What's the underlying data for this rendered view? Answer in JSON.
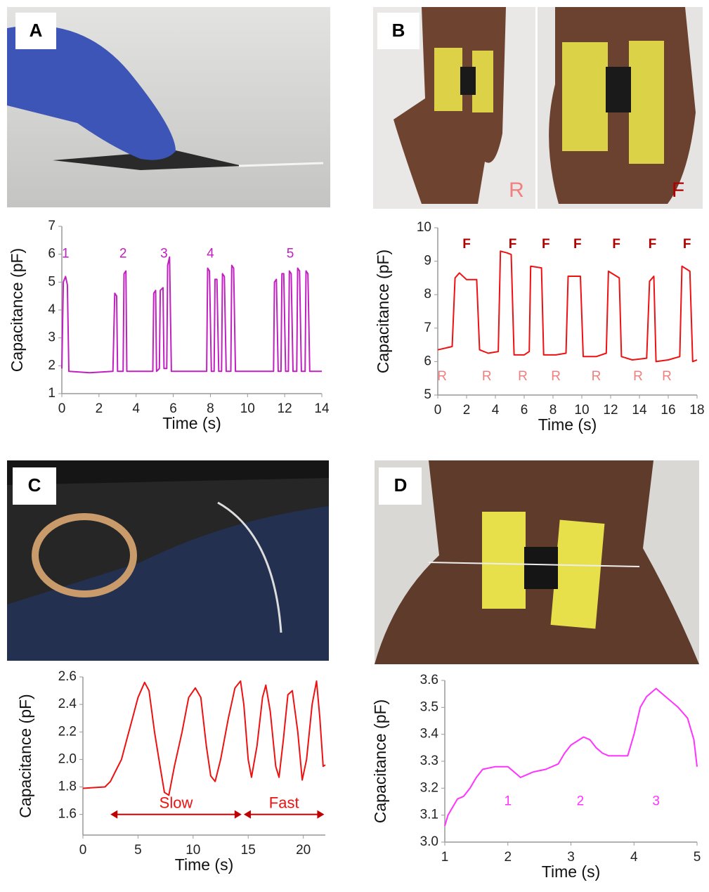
{
  "panels": [
    {
      "label": "A"
    },
    {
      "label": "B"
    },
    {
      "label": "C"
    },
    {
      "label": "D"
    }
  ],
  "photo_labels": [
    "R",
    "F"
  ],
  "chart_data": [
    {
      "type": "line",
      "xlabel": "Time (s)",
      "ylabel": "Capacitance (pF)",
      "color": "#c020c0",
      "x": [
        0,
        0.08,
        0.2,
        0.3,
        0.38,
        1.5,
        2.75,
        2.85,
        2.95,
        3.0,
        3.3,
        3.35,
        3.45,
        3.5,
        4.2,
        4.9,
        4.95,
        5.05,
        5.1,
        5.25,
        5.3,
        5.45,
        5.5,
        5.65,
        5.7,
        5.8,
        5.9,
        7.0,
        7.8,
        7.85,
        7.95,
        8.05,
        8.2,
        8.25,
        8.35,
        8.45,
        8.6,
        8.65,
        8.75,
        8.85,
        9.1,
        9.15,
        9.25,
        9.35,
        10.5,
        11.4,
        11.45,
        11.55,
        11.65,
        11.8,
        11.85,
        11.95,
        12.05,
        12.2,
        12.25,
        12.35,
        12.45,
        12.65,
        12.7,
        12.8,
        12.9,
        13.1,
        13.15,
        13.25,
        13.35,
        14
      ],
      "values": [
        1.9,
        5.0,
        5.2,
        4.9,
        1.8,
        1.75,
        1.8,
        4.6,
        4.5,
        1.8,
        1.8,
        5.3,
        5.4,
        1.8,
        1.8,
        1.8,
        4.6,
        4.7,
        1.8,
        1.9,
        4.7,
        4.8,
        1.9,
        1.9,
        5.6,
        5.9,
        1.8,
        1.8,
        1.8,
        5.5,
        5.4,
        1.8,
        1.8,
        5.1,
        5.1,
        1.8,
        1.8,
        5.3,
        5.2,
        1.8,
        1.8,
        5.6,
        5.5,
        1.8,
        1.8,
        1.8,
        5.0,
        5.1,
        1.8,
        1.8,
        5.3,
        5.3,
        1.8,
        1.8,
        5.4,
        5.3,
        1.8,
        1.8,
        5.5,
        5.4,
        1.8,
        1.8,
        5.4,
        5.3,
        1.8,
        1.8
      ],
      "xlim": [
        0,
        14
      ],
      "ylim": [
        1,
        7
      ],
      "xticks": [
        0,
        2,
        4,
        6,
        8,
        10,
        12,
        14
      ],
      "yticks": [
        1,
        2,
        3,
        4,
        5,
        6,
        7
      ],
      "annotations": [
        {
          "text": "1",
          "x": 0.2,
          "y": 6.0,
          "color": "#c020c0"
        },
        {
          "text": "2",
          "x": 3.3,
          "y": 6.0,
          "color": "#c020c0"
        },
        {
          "text": "3",
          "x": 5.5,
          "y": 6.0,
          "color": "#c020c0"
        },
        {
          "text": "4",
          "x": 8.0,
          "y": 6.0,
          "color": "#c020c0"
        },
        {
          "text": "5",
          "x": 12.3,
          "y": 6.0,
          "color": "#c020c0"
        }
      ]
    },
    {
      "type": "line",
      "xlabel": "Time (s)",
      "ylabel": "Capacitance (pF)",
      "color": "#ee1111",
      "x": [
        0,
        1.0,
        1.2,
        1.5,
        2.0,
        2.7,
        2.9,
        3.5,
        4.2,
        4.35,
        4.8,
        5.1,
        5.3,
        6.0,
        6.35,
        6.45,
        7.2,
        7.35,
        8.2,
        8.9,
        9.05,
        9.9,
        10.1,
        11.0,
        11.7,
        11.85,
        12.6,
        12.75,
        13.5,
        14.5,
        14.7,
        15.0,
        15.15,
        16.0,
        16.8,
        16.95,
        17.5,
        17.7,
        18
      ],
      "values": [
        6.35,
        6.45,
        8.5,
        8.65,
        8.45,
        8.45,
        6.35,
        6.25,
        6.3,
        9.3,
        9.25,
        9.2,
        6.2,
        6.2,
        6.3,
        8.85,
        8.8,
        6.2,
        6.2,
        6.25,
        8.55,
        8.55,
        6.15,
        6.15,
        6.25,
        8.7,
        8.5,
        6.15,
        6.05,
        6.1,
        8.4,
        8.55,
        6.0,
        6.05,
        6.15,
        8.85,
        8.7,
        6.0,
        6.05
      ],
      "xlim": [
        0,
        18
      ],
      "ylim": [
        5,
        10
      ],
      "xticks": [
        0,
        2,
        4,
        6,
        8,
        10,
        12,
        14,
        16,
        18
      ],
      "yticks": [
        5,
        6,
        7,
        8,
        9,
        10
      ],
      "annotations": [
        {
          "text": "F",
          "x": 2.0,
          "y": 9.5,
          "color": "#b00000"
        },
        {
          "text": "F",
          "x": 5.2,
          "y": 9.5,
          "color": "#b00000"
        },
        {
          "text": "F",
          "x": 7.5,
          "y": 9.5,
          "color": "#b00000"
        },
        {
          "text": "F",
          "x": 9.7,
          "y": 9.5,
          "color": "#b00000"
        },
        {
          "text": "F",
          "x": 12.4,
          "y": 9.5,
          "color": "#b00000"
        },
        {
          "text": "F",
          "x": 14.9,
          "y": 9.5,
          "color": "#b00000"
        },
        {
          "text": "F",
          "x": 17.3,
          "y": 9.5,
          "color": "#b00000"
        },
        {
          "text": "R",
          "x": 0.3,
          "y": 5.55,
          "color": "#f08080"
        },
        {
          "text": "R",
          "x": 3.4,
          "y": 5.55,
          "color": "#f08080"
        },
        {
          "text": "R",
          "x": 5.9,
          "y": 5.55,
          "color": "#f08080"
        },
        {
          "text": "R",
          "x": 8.2,
          "y": 5.55,
          "color": "#f08080"
        },
        {
          "text": "R",
          "x": 11.0,
          "y": 5.55,
          "color": "#f08080"
        },
        {
          "text": "R",
          "x": 13.9,
          "y": 5.55,
          "color": "#f08080"
        },
        {
          "text": "R",
          "x": 15.9,
          "y": 5.55,
          "color": "#f08080"
        }
      ]
    },
    {
      "type": "line",
      "xlabel": "Time (s)",
      "ylabel": "Capacitance (pF)",
      "color": "#ee1111",
      "x": [
        0,
        2,
        2.5,
        3,
        3.5,
        4,
        4.5,
        5,
        5.6,
        6,
        6.5,
        7,
        7.4,
        7.8,
        8.3,
        9,
        9.6,
        10.2,
        10.7,
        11.2,
        11.6,
        12.0,
        12.5,
        13.2,
        13.8,
        14.3,
        14.6,
        15,
        15.3,
        15.8,
        16.3,
        16.6,
        17,
        17.5,
        17.8,
        18.2,
        18.6,
        19,
        19.5,
        19.9,
        20.3,
        20.8,
        21.2,
        21.5,
        21.8,
        22
      ],
      "values": [
        1.79,
        1.8,
        1.84,
        1.92,
        2.0,
        2.15,
        2.3,
        2.45,
        2.56,
        2.5,
        2.2,
        1.95,
        1.76,
        1.74,
        1.95,
        2.2,
        2.45,
        2.52,
        2.45,
        2.1,
        1.88,
        1.84,
        2.0,
        2.3,
        2.52,
        2.57,
        2.4,
        2.0,
        1.87,
        2.1,
        2.45,
        2.54,
        2.35,
        1.95,
        1.87,
        2.15,
        2.47,
        2.5,
        2.2,
        1.85,
        2.0,
        2.4,
        2.57,
        2.3,
        1.95,
        1.96
      ],
      "xlim": [
        0,
        22
      ],
      "ylim": [
        1.45,
        2.6
      ],
      "xticks": [
        0,
        5,
        10,
        15,
        20
      ],
      "yticks": [
        1.6,
        1.8,
        {
          "value": 2,
          "label": "2.0"
        },
        2.2,
        2.4,
        2.6
      ],
      "ranges": [
        {
          "label": "Slow",
          "from": 2.5,
          "to": 14.4,
          "y": 1.6
        },
        {
          "label": "Fast",
          "from": 14.6,
          "to": 21.9,
          "y": 1.6
        }
      ]
    },
    {
      "type": "line",
      "xlabel": "Time (s)",
      "ylabel": "Capacitance (pF)",
      "color": "#ff33ff",
      "x": [
        1,
        1.05,
        1.1,
        1.2,
        1.3,
        1.4,
        1.5,
        1.6,
        1.8,
        2.0,
        2.1,
        2.2,
        2.3,
        2.4,
        2.6,
        2.8,
        2.9,
        3.0,
        3.2,
        3.3,
        3.4,
        3.5,
        3.6,
        3.9,
        4.0,
        4.1,
        4.2,
        4.35,
        4.5,
        4.7,
        4.85,
        4.95,
        5
      ],
      "values": [
        3.06,
        3.1,
        3.12,
        3.16,
        3.17,
        3.2,
        3.24,
        3.27,
        3.28,
        3.28,
        3.26,
        3.24,
        3.25,
        3.26,
        3.27,
        3.29,
        3.33,
        3.36,
        3.39,
        3.38,
        3.35,
        3.33,
        3.32,
        3.32,
        3.4,
        3.5,
        3.54,
        3.57,
        3.54,
        3.5,
        3.46,
        3.38,
        3.28
      ],
      "xlim": [
        1,
        5
      ],
      "ylim": [
        3.0,
        3.6
      ],
      "xticks": [
        1,
        2,
        3,
        4,
        5
      ],
      "yticks": [
        {
          "value": 3,
          "label": "3.0"
        },
        3.1,
        3.2,
        3.3,
        3.4,
        3.5,
        3.6
      ],
      "annotations": [
        {
          "text": "1",
          "x": 2.0,
          "y": 3.15,
          "color": "#ff33ff"
        },
        {
          "text": "2",
          "x": 3.15,
          "y": 3.15,
          "color": "#ff33ff"
        },
        {
          "text": "3",
          "x": 4.35,
          "y": 3.15,
          "color": "#ff33ff"
        }
      ]
    }
  ]
}
